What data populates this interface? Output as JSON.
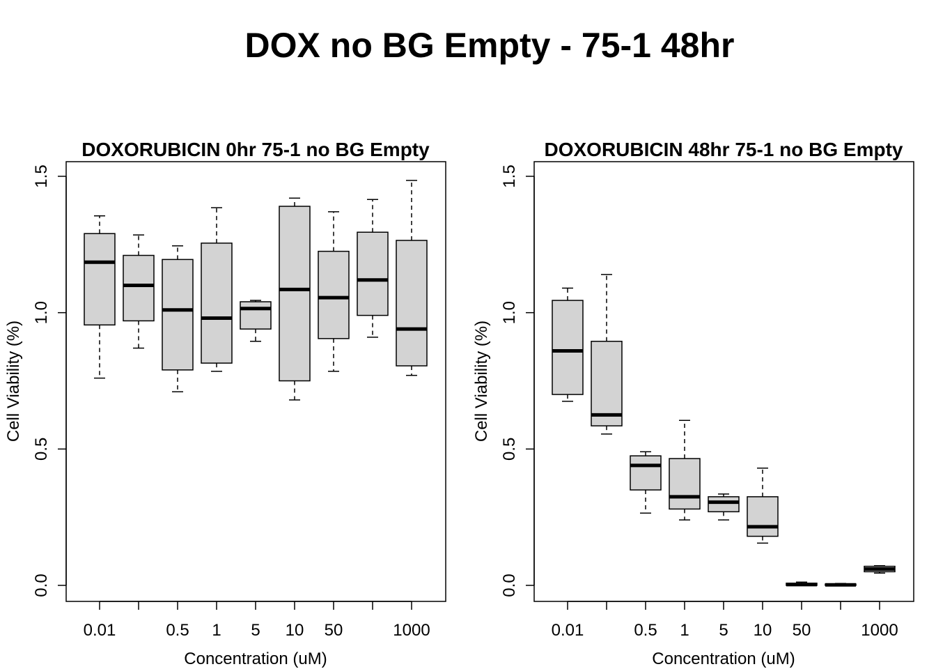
{
  "title": "DOX no BG Empty - 75-1 48hr",
  "chart_data": [
    {
      "type": "box",
      "title": "DOXORUBICIN 0hr 75-1 no BG Empty",
      "xlabel": "Concentration (uM)",
      "ylabel": "Cell Viability (%)",
      "ylim": [
        0,
        1.5
      ],
      "yticks": [
        "0.0",
        "0.5",
        "1.0",
        "1.5"
      ],
      "categories": [
        "0.01",
        "",
        "0.5",
        "1",
        "5",
        "10",
        "50",
        "",
        "1000"
      ],
      "boxes": [
        {
          "whisker_low": 0.76,
          "q1": 0.955,
          "median": 1.185,
          "q3": 1.29,
          "whisker_high": 1.355
        },
        {
          "whisker_low": 0.87,
          "q1": 0.97,
          "median": 1.1,
          "q3": 1.21,
          "whisker_high": 1.285
        },
        {
          "whisker_low": 0.71,
          "q1": 0.79,
          "median": 1.01,
          "q3": 1.195,
          "whisker_high": 1.245
        },
        {
          "whisker_low": 0.785,
          "q1": 0.815,
          "median": 0.98,
          "q3": 1.255,
          "whisker_high": 1.385
        },
        {
          "whisker_low": 0.895,
          "q1": 0.94,
          "median": 1.015,
          "q3": 1.04,
          "whisker_high": 1.045
        },
        {
          "whisker_low": 0.68,
          "q1": 0.75,
          "median": 1.085,
          "q3": 1.39,
          "whisker_high": 1.42
        },
        {
          "whisker_low": 0.785,
          "q1": 0.905,
          "median": 1.055,
          "q3": 1.225,
          "whisker_high": 1.37
        },
        {
          "whisker_low": 0.91,
          "q1": 0.99,
          "median": 1.12,
          "q3": 1.295,
          "whisker_high": 1.415
        },
        {
          "whisker_low": 0.77,
          "q1": 0.805,
          "median": 0.94,
          "q3": 1.265,
          "whisker_high": 1.485
        }
      ]
    },
    {
      "type": "box",
      "title": "DOXORUBICIN 48hr 75-1 no BG Empty",
      "xlabel": "Concentration (uM)",
      "ylabel": "Cell Viability (%)",
      "ylim": [
        0,
        1.5
      ],
      "yticks": [
        "0.0",
        "0.5",
        "1.0",
        "1.5"
      ],
      "categories": [
        "0.01",
        "",
        "0.5",
        "1",
        "5",
        "10",
        "50",
        "",
        "1000"
      ],
      "boxes": [
        {
          "whisker_low": 0.675,
          "q1": 0.7,
          "median": 0.86,
          "q3": 1.045,
          "whisker_high": 1.09
        },
        {
          "whisker_low": 0.555,
          "q1": 0.585,
          "median": 0.625,
          "q3": 0.895,
          "whisker_high": 1.14
        },
        {
          "whisker_low": 0.265,
          "q1": 0.35,
          "median": 0.44,
          "q3": 0.475,
          "whisker_high": 0.49
        },
        {
          "whisker_low": 0.24,
          "q1": 0.28,
          "median": 0.325,
          "q3": 0.465,
          "whisker_high": 0.605
        },
        {
          "whisker_low": 0.24,
          "q1": 0.27,
          "median": 0.305,
          "q3": 0.325,
          "whisker_high": 0.335
        },
        {
          "whisker_low": 0.155,
          "q1": 0.18,
          "median": 0.215,
          "q3": 0.325,
          "whisker_high": 0.43
        },
        {
          "whisker_low": 0.0,
          "q1": 0.0,
          "median": 0.003,
          "q3": 0.008,
          "whisker_high": 0.012
        },
        {
          "whisker_low": 0.0,
          "q1": 0.0,
          "median": 0.002,
          "q3": 0.005,
          "whisker_high": 0.007
        },
        {
          "whisker_low": 0.045,
          "q1": 0.05,
          "median": 0.06,
          "q3": 0.07,
          "whisker_high": 0.072
        }
      ]
    }
  ]
}
